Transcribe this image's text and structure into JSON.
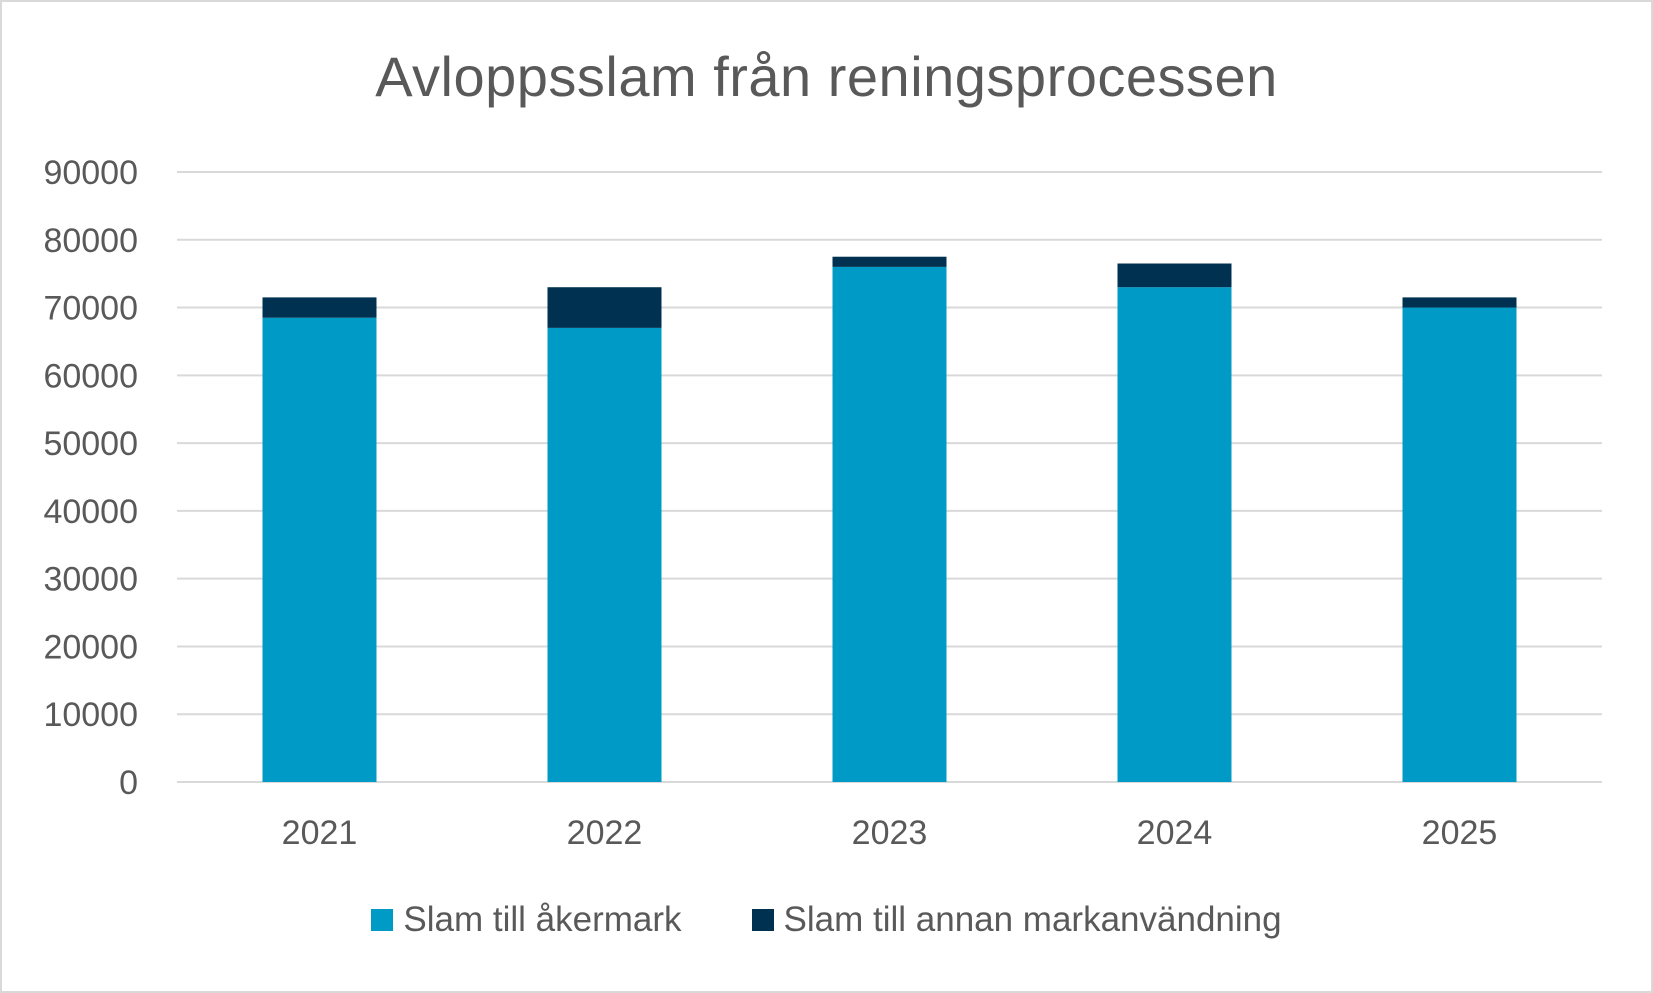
{
  "chart_data": {
    "type": "bar",
    "stacked": true,
    "title": "Avloppsslam från reningsprocessen",
    "xlabel": "",
    "ylabel": "",
    "categories": [
      "2021",
      "2022",
      "2023",
      "2024",
      "2025"
    ],
    "series": [
      {
        "name": "Slam till åkermark",
        "color": "#009ac7",
        "values": [
          68500,
          67000,
          76000,
          73000,
          70000
        ]
      },
      {
        "name": "Slam till annan markanvändning",
        "color": "#003150",
        "values": [
          3000,
          6000,
          1500,
          3500,
          1500
        ]
      }
    ],
    "ylim": [
      0,
      90000
    ],
    "yticks": [
      "0",
      "10000",
      "20000",
      "30000",
      "40000",
      "50000",
      "60000",
      "70000",
      "80000",
      "90000"
    ],
    "grid": true,
    "legend_position": "bottom"
  }
}
